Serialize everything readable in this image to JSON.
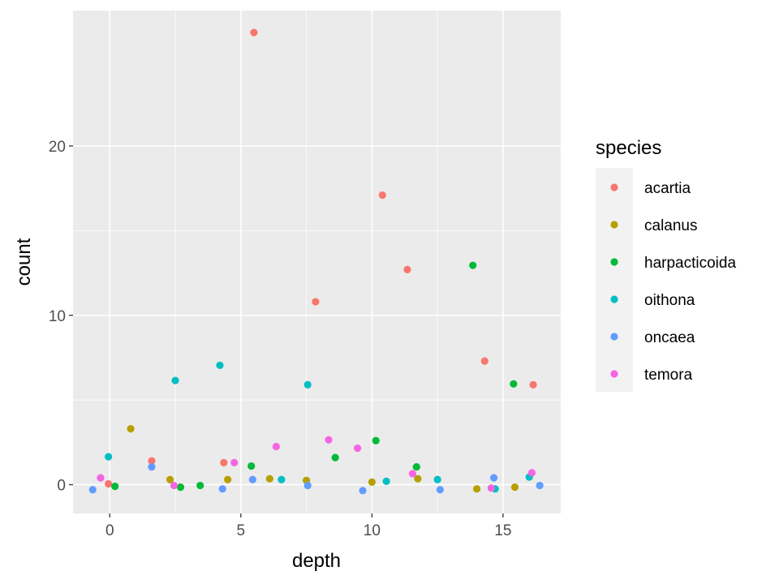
{
  "chart_data": {
    "type": "scatter",
    "title": "",
    "xlabel": "depth",
    "ylabel": "count",
    "xlim": [
      -1.4,
      17.2
    ],
    "ylim": [
      -1.7,
      28.0
    ],
    "x_ticks": [
      0,
      5,
      10,
      15
    ],
    "y_ticks": [
      0,
      10,
      20
    ],
    "grid": true,
    "legend": {
      "title": "species",
      "placement": "right"
    },
    "colors": {
      "acartia": "#F8766D",
      "calanus": "#B79F00",
      "harpacticoida": "#00BA38",
      "oithona": "#00BFC4",
      "oncaea": "#619CFF",
      "temora": "#F564E3"
    },
    "series": [
      {
        "name": "acartia",
        "color": "#F8766D",
        "points": [
          [
            -0.05,
            0.05
          ],
          [
            1.6,
            1.4
          ],
          [
            4.35,
            1.3
          ],
          [
            5.5,
            26.7
          ],
          [
            7.85,
            10.8
          ],
          [
            10.4,
            17.1
          ],
          [
            11.35,
            12.7
          ],
          [
            14.3,
            7.3
          ],
          [
            16.15,
            5.9
          ]
        ]
      },
      {
        "name": "calanus",
        "color": "#B79F00",
        "points": [
          [
            0.8,
            3.3
          ],
          [
            2.3,
            0.3
          ],
          [
            4.5,
            0.3
          ],
          [
            6.1,
            0.35
          ],
          [
            7.5,
            0.25
          ],
          [
            10.0,
            0.15
          ],
          [
            11.75,
            0.35
          ],
          [
            14.0,
            -0.25
          ],
          [
            15.45,
            -0.15
          ]
        ]
      },
      {
        "name": "harpacticoida",
        "color": "#00BA38",
        "points": [
          [
            0.2,
            -0.1
          ],
          [
            2.7,
            -0.15
          ],
          [
            3.45,
            -0.05
          ],
          [
            5.4,
            1.1
          ],
          [
            8.6,
            1.6
          ],
          [
            10.15,
            2.6
          ],
          [
            11.7,
            1.05
          ],
          [
            13.85,
            12.95
          ],
          [
            15.4,
            5.95
          ]
        ]
      },
      {
        "name": "oithona",
        "color": "#00BFC4",
        "points": [
          [
            -0.05,
            1.65
          ],
          [
            2.5,
            6.15
          ],
          [
            4.2,
            7.05
          ],
          [
            6.55,
            0.3
          ],
          [
            7.55,
            5.9
          ],
          [
            10.55,
            0.2
          ],
          [
            12.5,
            0.3
          ],
          [
            14.7,
            -0.25
          ],
          [
            16.0,
            0.45
          ]
        ]
      },
      {
        "name": "oncaea",
        "color": "#619CFF",
        "points": [
          [
            -0.65,
            -0.3
          ],
          [
            1.6,
            1.05
          ],
          [
            4.3,
            -0.25
          ],
          [
            5.45,
            0.3
          ],
          [
            7.55,
            -0.05
          ],
          [
            9.65,
            -0.35
          ],
          [
            12.6,
            -0.3
          ],
          [
            14.65,
            0.4
          ],
          [
            16.4,
            -0.05
          ]
        ]
      },
      {
        "name": "temora",
        "color": "#F564E3",
        "points": [
          [
            -0.35,
            0.4
          ],
          [
            2.45,
            -0.05
          ],
          [
            4.75,
            1.3
          ],
          [
            6.35,
            2.25
          ],
          [
            8.35,
            2.65
          ],
          [
            9.45,
            2.15
          ],
          [
            11.55,
            0.65
          ],
          [
            14.55,
            -0.2
          ],
          [
            16.1,
            0.7
          ]
        ]
      }
    ]
  }
}
